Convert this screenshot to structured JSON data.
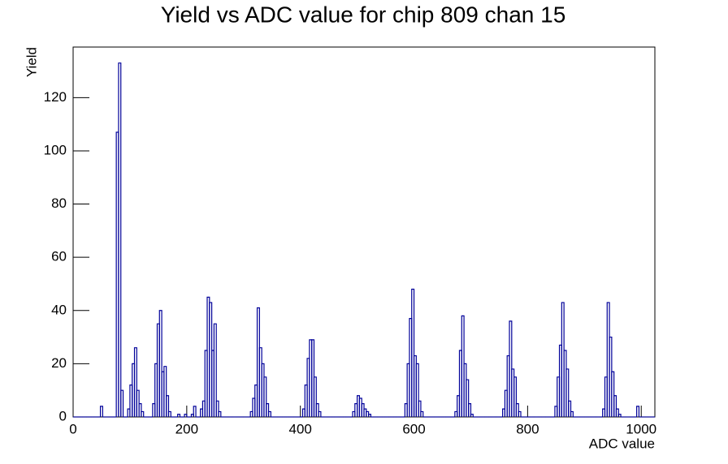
{
  "chart_data": {
    "type": "histogram",
    "title": "Yield vs ADC value for chip 809 chan 15",
    "x_label": "ADC value",
    "y_label": "Yield",
    "color": "#000099",
    "xlim": [
      0,
      1024
    ],
    "ylim": [
      0,
      139
    ],
    "xticks": [
      0,
      200,
      400,
      600,
      800,
      1000
    ],
    "yticks": [
      0,
      20,
      40,
      60,
      80,
      100,
      120
    ],
    "bins": [
      0,
      4,
      8,
      12,
      16,
      20,
      24,
      28,
      32,
      36,
      40,
      44,
      48,
      52,
      56,
      60,
      64,
      68,
      72,
      76,
      80,
      84,
      88,
      92,
      96,
      100,
      104,
      108,
      112,
      116,
      120,
      124,
      128,
      132,
      136,
      140,
      144,
      148,
      152,
      156,
      160,
      164,
      168,
      172,
      176,
      180,
      184,
      188,
      192,
      196,
      200,
      204,
      208,
      212,
      216,
      220,
      224,
      228,
      232,
      236,
      240,
      244,
      248,
      252,
      256,
      260,
      264,
      268,
      272,
      276,
      280,
      284,
      288,
      292,
      296,
      300,
      304,
      308,
      312,
      316,
      320,
      324,
      328,
      332,
      336,
      340,
      344,
      348,
      352,
      356,
      360,
      364,
      368,
      372,
      376,
      380,
      384,
      388,
      392,
      396,
      400,
      404,
      408,
      412,
      416,
      420,
      424,
      428,
      432,
      436,
      440,
      444,
      448,
      452,
      456,
      460,
      464,
      468,
      472,
      476,
      480,
      484,
      488,
      492,
      496,
      500,
      504,
      508,
      512,
      516,
      520,
      524,
      528,
      532,
      536,
      540,
      544,
      548,
      552,
      556,
      560,
      564,
      568,
      572,
      576,
      580,
      584,
      588,
      592,
      596,
      600,
      604,
      608,
      612,
      616,
      620,
      624,
      628,
      632,
      636,
      640,
      644,
      648,
      652,
      656,
      660,
      664,
      668,
      672,
      676,
      680,
      684,
      688,
      692,
      696,
      700,
      704,
      708,
      712,
      716,
      720,
      724,
      728,
      732,
      736,
      740,
      744,
      748,
      752,
      756,
      760,
      764,
      768,
      772,
      776,
      780,
      784,
      788,
      792,
      796,
      800,
      804,
      808,
      812,
      816,
      820,
      824,
      828,
      832,
      836,
      840,
      844,
      848,
      852,
      856,
      860,
      864,
      868,
      872,
      876,
      880,
      884,
      888,
      892,
      896,
      900,
      904,
      908,
      912,
      916,
      920,
      924,
      928,
      932,
      936,
      940,
      944,
      948,
      952,
      956,
      960,
      964,
      968,
      972,
      976,
      980,
      984,
      988,
      992,
      996,
      1000,
      1004,
      1008,
      1012,
      1016,
      1020,
      1024
    ],
    "values": [
      0,
      0,
      0,
      0,
      0,
      0,
      0,
      0,
      0,
      0,
      0,
      0,
      4,
      0,
      0,
      0,
      0,
      0,
      0,
      107,
      133,
      10,
      0,
      0,
      3,
      12,
      20,
      26,
      10,
      5,
      2,
      0,
      0,
      0,
      0,
      5,
      20,
      35,
      40,
      17,
      19,
      8,
      2,
      0,
      0,
      0,
      1,
      0,
      0,
      1,
      0,
      0,
      1,
      4,
      0,
      0,
      3,
      6,
      25,
      45,
      43,
      25,
      35,
      6,
      2,
      0,
      0,
      0,
      0,
      0,
      0,
      0,
      0,
      0,
      0,
      0,
      0,
      0,
      2,
      7,
      12,
      41,
      26,
      20,
      15,
      5,
      2,
      0,
      0,
      0,
      0,
      0,
      0,
      0,
      0,
      0,
      0,
      0,
      0,
      0,
      0,
      3,
      12,
      22,
      29,
      29,
      15,
      5,
      2,
      0,
      0,
      0,
      0,
      0,
      0,
      0,
      0,
      0,
      0,
      0,
      0,
      0,
      0,
      2,
      5,
      8,
      7,
      5,
      3,
      2,
      1,
      0,
      0,
      0,
      0,
      0,
      0,
      0,
      0,
      0,
      0,
      0,
      0,
      0,
      0,
      0,
      5,
      20,
      37,
      48,
      23,
      20,
      6,
      2,
      0,
      0,
      0,
      0,
      0,
      0,
      0,
      0,
      0,
      0,
      0,
      0,
      0,
      0,
      2,
      8,
      25,
      38,
      20,
      14,
      5,
      1,
      0,
      0,
      0,
      0,
      0,
      0,
      0,
      0,
      0,
      0,
      0,
      0,
      0,
      3,
      10,
      23,
      36,
      18,
      15,
      5,
      2,
      0,
      0,
      0,
      0,
      0,
      0,
      0,
      0,
      0,
      0,
      0,
      0,
      0,
      0,
      0,
      4,
      15,
      27,
      43,
      25,
      18,
      6,
      2,
      0,
      0,
      0,
      0,
      0,
      0,
      0,
      0,
      0,
      0,
      0,
      0,
      0,
      3,
      15,
      43,
      30,
      17,
      8,
      3,
      1,
      0,
      0,
      0,
      0,
      0,
      0,
      0,
      4,
      0,
      0,
      0,
      0,
      0,
      0,
      0
    ]
  }
}
